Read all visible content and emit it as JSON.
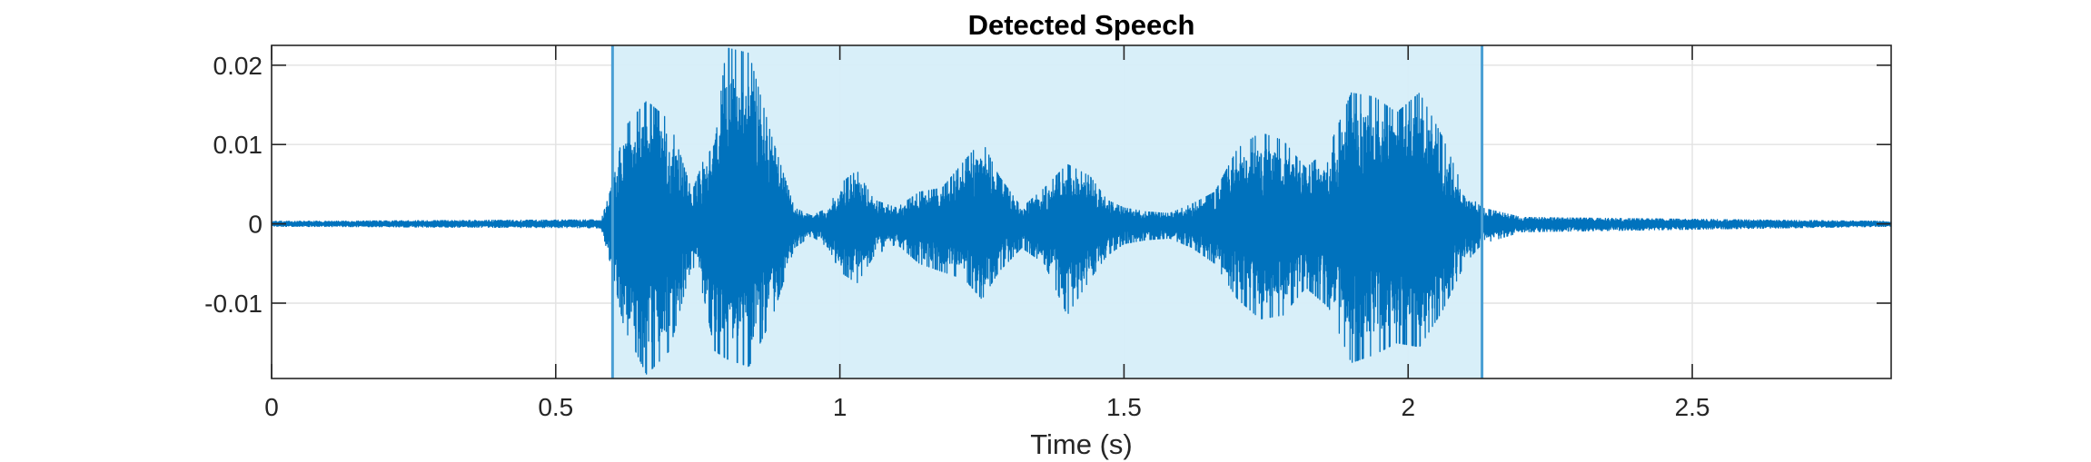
{
  "chart_data": {
    "type": "line",
    "title": "Detected Speech",
    "xlabel": "Time (s)",
    "ylabel": "",
    "xlim": [
      0,
      2.85
    ],
    "ylim": [
      -0.0195,
      0.0225
    ],
    "xticks": [
      0,
      0.5,
      1,
      1.5,
      2,
      2.5
    ],
    "xtick_labels": [
      "0",
      "0.5",
      "1",
      "1.5",
      "2",
      "2.5"
    ],
    "yticks": [
      0.02,
      0.01,
      0,
      -0.01
    ],
    "ytick_labels": [
      "0.02",
      "0.01",
      "0",
      "-0.01"
    ],
    "grid": true,
    "colors": {
      "signal": "#0072BD",
      "region_fill": "#D6EEF9",
      "region_edge": "#4A9FD4",
      "grid": "#E2E2E2",
      "axes": "#262626"
    },
    "detected_region": {
      "start": 0.6,
      "end": 2.13
    },
    "series": [
      {
        "envelope": {
          "time": [
            0,
            0.58,
            0.6,
            0.62,
            0.66,
            0.7,
            0.74,
            0.76,
            0.78,
            0.8,
            0.84,
            0.88,
            0.92,
            0.95,
            0.98,
            1.0,
            1.03,
            1.06,
            1.1,
            1.14,
            1.18,
            1.22,
            1.25,
            1.28,
            1.32,
            1.36,
            1.4,
            1.44,
            1.47,
            1.5,
            1.54,
            1.58,
            1.62,
            1.66,
            1.7,
            1.74,
            1.78,
            1.82,
            1.86,
            1.9,
            1.94,
            1.98,
            2.02,
            2.06,
            2.1,
            2.13,
            2.2,
            2.85
          ],
          "upper": [
            0.0003,
            0.0005,
            0.005,
            0.012,
            0.0155,
            0.013,
            0.004,
            0.008,
            0.01,
            0.0222,
            0.0215,
            0.011,
            0.002,
            0.001,
            0.002,
            0.005,
            0.0067,
            0.003,
            0.002,
            0.004,
            0.0045,
            0.008,
            0.0105,
            0.006,
            0.002,
            0.0045,
            0.0075,
            0.006,
            0.003,
            0.002,
            0.0015,
            0.0013,
            0.0025,
            0.004,
            0.0095,
            0.0115,
            0.0105,
            0.007,
            0.0095,
            0.0165,
            0.016,
            0.014,
            0.0165,
            0.011,
            0.004,
            0.002,
            0.0008,
            0.0003
          ],
          "lower": [
            -0.0003,
            -0.0005,
            -0.006,
            -0.013,
            -0.019,
            -0.016,
            -0.005,
            -0.009,
            -0.016,
            -0.017,
            -0.018,
            -0.012,
            -0.003,
            -0.0015,
            -0.003,
            -0.006,
            -0.0075,
            -0.004,
            -0.0025,
            -0.005,
            -0.006,
            -0.007,
            -0.0095,
            -0.006,
            -0.003,
            -0.005,
            -0.0115,
            -0.007,
            -0.004,
            -0.0025,
            -0.002,
            -0.0018,
            -0.003,
            -0.005,
            -0.0095,
            -0.012,
            -0.0115,
            -0.008,
            -0.0105,
            -0.0175,
            -0.0165,
            -0.015,
            -0.0155,
            -0.011,
            -0.005,
            -0.0025,
            -0.001,
            -0.0003
          ]
        }
      }
    ]
  }
}
